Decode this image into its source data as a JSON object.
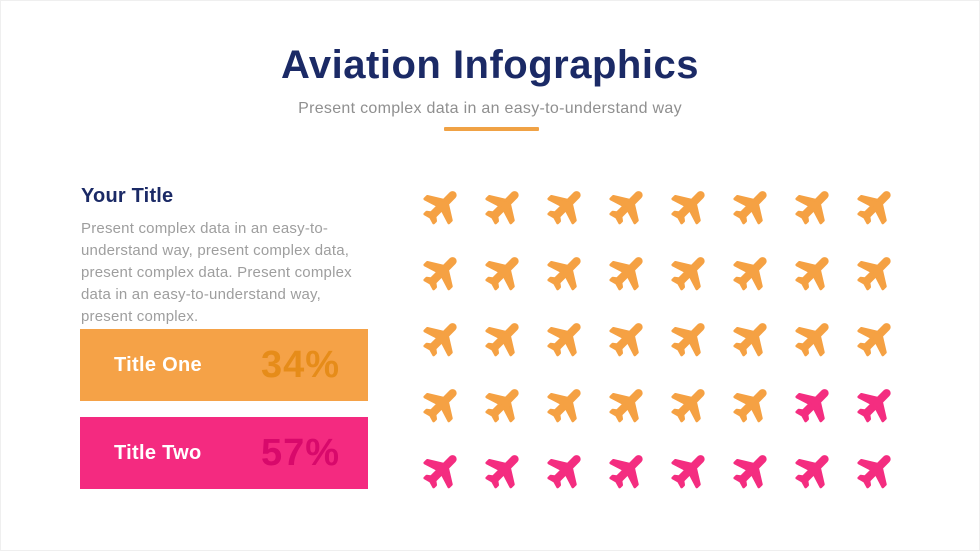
{
  "header": {
    "title": "Aviation Infographics",
    "subtitle": "Present complex data in an easy-to-understand way"
  },
  "left_panel": {
    "heading": "Your Title",
    "body": "Present complex data in an easy-to-understand way, present complex data, present complex data. Present complex data in an easy-to-understand way, present complex.",
    "stats": [
      {
        "label": "Title One",
        "value_label": "34%",
        "value": 34,
        "bar_color": "#F5A247",
        "value_color": "#E68C19"
      },
      {
        "label": "Title Two",
        "value_label": "57%",
        "value": 57,
        "bar_color": "#F42A80",
        "value_color": "#D8096B"
      }
    ]
  },
  "chart_data": {
    "type": "pictograph",
    "title": "Aviation Infographics",
    "icon": "airplane",
    "legend_position": "left",
    "grid": {
      "rows": 5,
      "columns": 8,
      "total_icons": 40
    },
    "series": [
      {
        "name": "Title One",
        "value": 34,
        "value_label": "34%",
        "color_key": "orange",
        "icon_count": 30
      },
      {
        "name": "Title Two",
        "value": 57,
        "value_label": "57%",
        "color_key": "pink",
        "icon_count": 10
      }
    ],
    "colors": {
      "orange": "#F5A143",
      "pink": "#F42D80"
    },
    "cells": [
      "orange",
      "orange",
      "orange",
      "orange",
      "orange",
      "orange",
      "orange",
      "orange",
      "orange",
      "orange",
      "orange",
      "orange",
      "orange",
      "orange",
      "orange",
      "orange",
      "orange",
      "orange",
      "orange",
      "orange",
      "orange",
      "orange",
      "orange",
      "orange",
      "orange",
      "orange",
      "orange",
      "orange",
      "orange",
      "orange",
      "pink",
      "pink",
      "pink",
      "pink",
      "pink",
      "pink",
      "pink",
      "pink",
      "pink",
      "pink"
    ]
  },
  "theme": {
    "navy": "#1B2A66",
    "gray_text": "#9E9E9E",
    "accent_orange": "#F0A245",
    "background": "#FFFFFF"
  }
}
